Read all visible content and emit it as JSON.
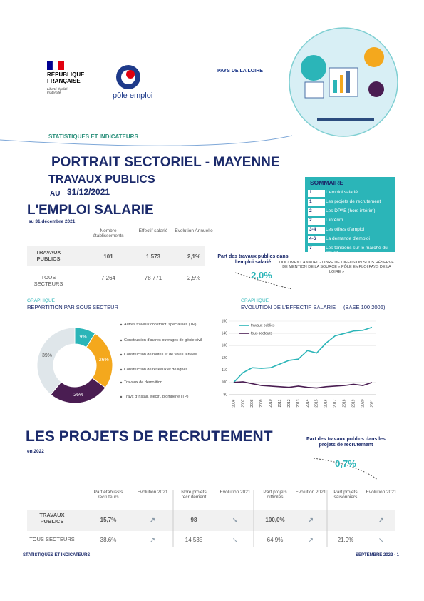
{
  "header": {
    "republique": "RÉPUBLIQUE FRANÇAISE",
    "motto": "Liberté Égalité Fraternité",
    "pole_emploi": "pôle emploi",
    "region": "PAYS DE LA LOIRE",
    "kicker": "STATISTIQUES ET INDICATEURS"
  },
  "title": {
    "main": "PORTRAIT SECTORIEL - MAYENNE",
    "sector": "TRAVAUX PUBLICS",
    "au": "AU",
    "date": "31/12/2021"
  },
  "sommaire": {
    "title": "SOMMAIRE",
    "items": [
      {
        "num": "1",
        "label": "L'emploi salarié"
      },
      {
        "num": "1",
        "label": "Les projets de recrutement"
      },
      {
        "num": "2",
        "label": "Les DPAE (hors intérim)"
      },
      {
        "num": "2",
        "label": "L'intérim"
      },
      {
        "num": "3-4",
        "label": "Les offres d'emploi"
      },
      {
        "num": "4-6",
        "label": "La demande d'emploi"
      },
      {
        "num": "7",
        "label": "Les tensions sur le marché du travail"
      }
    ]
  },
  "disclaimer": "DOCUMENT ANNUEL - LIBRE DE DIFFUSION SOUS RÉSERVE DE MENTION DE LA SOURCE « PÔLE EMPLOI PAYS DE LA LOIRE »",
  "emploi": {
    "title": "L'EMPLOI SALARIE",
    "subtitle": "au 31 décembre 2021",
    "columns": [
      "Nombre établissements",
      "Effectif salarié",
      "Evolution Annuelle"
    ],
    "rows": [
      {
        "label": "TRAVAUX PUBLICS",
        "cells": [
          "101",
          "1 573",
          "2,1%"
        ]
      },
      {
        "label": "TOUS SECTEURS",
        "cells": [
          "7 264",
          "78 771",
          "2,5%"
        ]
      }
    ],
    "share_label": "Part des travaux publics dans l'emploi salarié",
    "share": "2,0%"
  },
  "chart_data": [
    {
      "type": "pie",
      "kicker": "GRAPHIQUE",
      "title": "REPARTITION PAR SOUS SECTEUR",
      "categories": [
        "Autres travaux construct. spécialisés (TP)",
        "Construction d'autres ouvrages de génie civil",
        "Construction de routes et de voies ferrées",
        "Construction de réseaux et de lignes",
        "Travaux de démolition",
        "Travx d'install. électr., plomberie (TP)"
      ],
      "values": [
        9,
        26,
        26,
        39,
        0,
        0
      ],
      "value_labels": [
        "9%",
        "26%",
        "26%",
        "39%",
        null,
        null
      ],
      "colors": [
        "#2bb5b8",
        "#f4a81d",
        "#4a1d52",
        "#dfe6ea",
        "#9aa7b0",
        "#c9d3d9"
      ]
    },
    {
      "type": "line",
      "kicker": "GRAPHIQUE",
      "title": "EVOLUTION DE L'EFFECTIF SALARIE",
      "subtitle": "(BASE 100 2006)",
      "categories": [
        "2006",
        "2007",
        "2008",
        "2009",
        "2010",
        "2011",
        "2012",
        "2013",
        "2014",
        "2015",
        "2016",
        "2017",
        "2018",
        "2019",
        "2020",
        "2021"
      ],
      "series": [
        {
          "name": "travaux publics",
          "color": "#2bb5b8",
          "values": [
            100,
            108,
            112,
            111.5,
            112,
            115,
            118,
            119,
            126,
            124,
            132,
            138,
            140,
            142,
            142.5,
            145
          ]
        },
        {
          "name": "tous secteurs",
          "color": "#4a1d52",
          "values": [
            100,
            100.5,
            99,
            97.5,
            97,
            96.5,
            96,
            97,
            96,
            95.5,
            96.5,
            97,
            97.5,
            98.5,
            97.5,
            100
          ]
        }
      ],
      "ylim": [
        90,
        150
      ],
      "yticks": [
        90,
        100,
        110,
        120,
        130,
        140,
        150
      ],
      "grid": true
    }
  ],
  "recrutement": {
    "title": "LES PROJETS DE RECRUTEMENT",
    "subtitle": "en 2022",
    "columns": [
      "Part établissts recruteurs",
      "Evolution 2021",
      "Nbre projets recrutement",
      "Evolution 2021",
      "Part projets difficiles",
      "Evolution 2021",
      "Part projets saisonniers",
      "Evolution 2021"
    ],
    "rows": [
      {
        "label": "TRAVAUX PUBLICS",
        "cells": [
          "15,7%",
          "↗",
          "98",
          "↘",
          "100,0%",
          "↗",
          null,
          "↗"
        ]
      },
      {
        "label": "TOUS SECTEURS",
        "cells": [
          "38,6%",
          "↗",
          "14 535",
          "↘",
          "64,9%",
          "↗",
          "21,9%",
          "↘"
        ]
      }
    ],
    "share_label": "Part des travaux publics dans les projets de recrutement",
    "share": "0,7%"
  },
  "footer": {
    "left": "STATISTIQUES ET INDICATEURS",
    "right": "SEPTEMBRE 2022 - 1"
  }
}
